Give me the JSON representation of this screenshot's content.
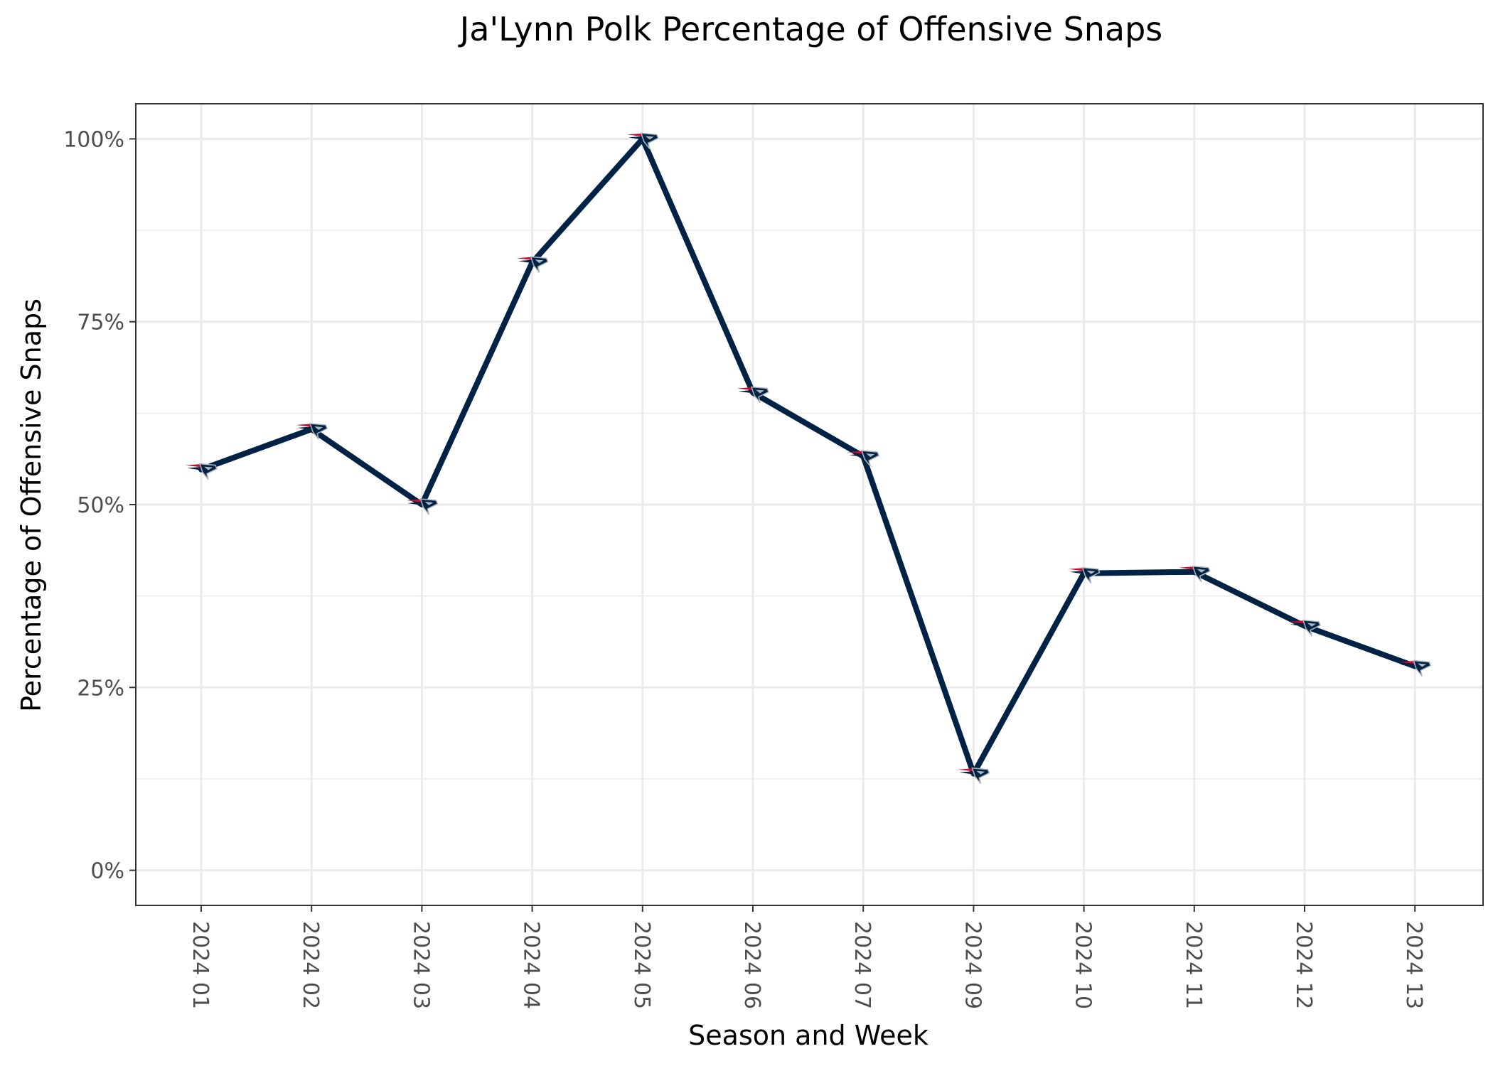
{
  "chart_data": {
    "type": "line",
    "title": "Ja'Lynn Polk Percentage of Offensive Snaps",
    "xlabel": "Season and Week",
    "ylabel": "Percentage of Offensive Snaps",
    "categories": [
      "2024 01",
      "2024 02",
      "2024 03",
      "2024 04",
      "2024 05",
      "2024 06",
      "2024 07",
      "2024 09",
      "2024 10",
      "2024 11",
      "2024 12",
      "2024 13"
    ],
    "values": [
      54.8,
      60.3,
      50.0,
      83.1,
      100.0,
      65.3,
      56.6,
      13.2,
      40.6,
      40.8,
      33.4,
      27.9
    ],
    "ylim": [
      -4.8,
      104.8
    ],
    "yticks": [
      0,
      25,
      50,
      75,
      100
    ],
    "ytick_labels": [
      "0%",
      "25%",
      "50%",
      "75%",
      "100%"
    ],
    "grid": true,
    "legend": "none",
    "marker": "team-logo",
    "line_color": "#002244",
    "marker_colors": {
      "primary": "#002244",
      "accent": "#c60c30",
      "silver": "#b0b7bc"
    }
  }
}
